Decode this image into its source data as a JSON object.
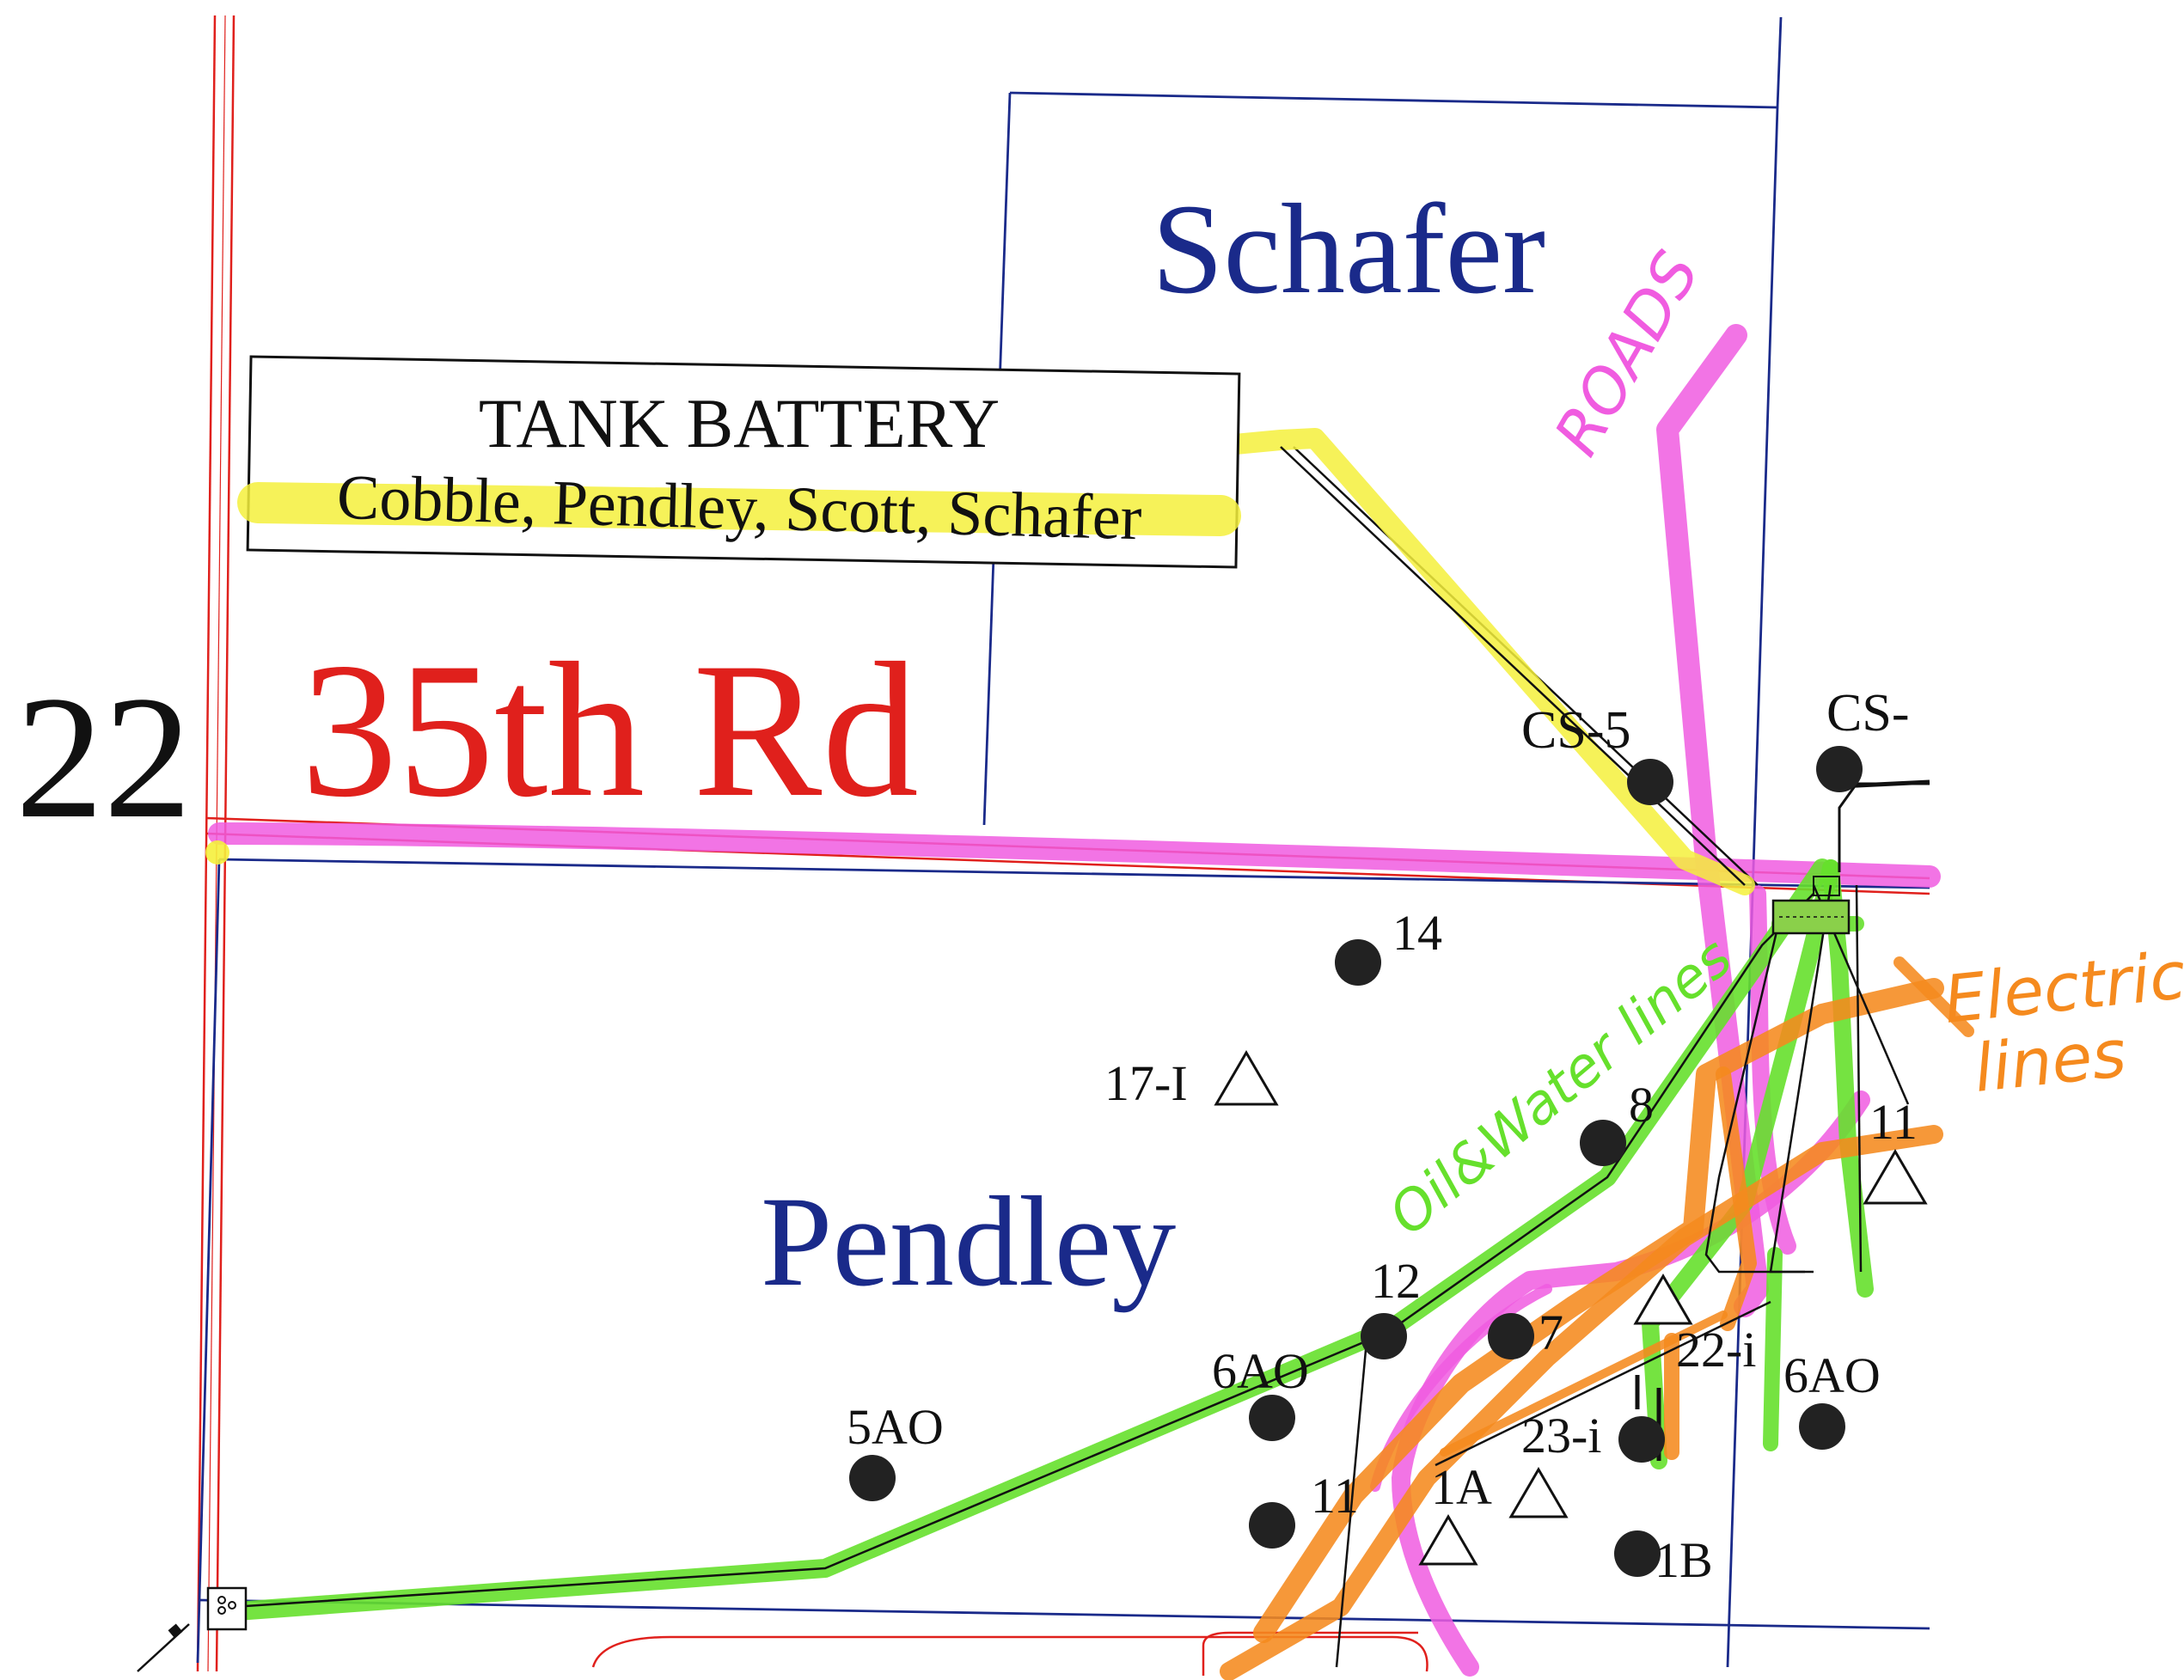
{
  "map": {
    "section_number": "22",
    "road_name": "35th Rd",
    "lease_names": {
      "north": "Schafer",
      "south": "Pendley"
    },
    "tank_battery": {
      "title": "TANK BATTERY",
      "subtitle": "Cobble, Pendley, Scott, Schafer"
    },
    "handwritten_annotations": {
      "roads": "ROADS",
      "oil_water_lines": "Oil&Water lines",
      "electric": "Electric",
      "lines": "lines"
    },
    "wells": [
      {
        "label": "CS-5",
        "symbol": "producing-well"
      },
      {
        "label": "CS-",
        "symbol": "producing-well"
      },
      {
        "label": "14",
        "symbol": "producing-well"
      },
      {
        "label": "17-I",
        "symbol": "injection-well"
      },
      {
        "label": "8",
        "symbol": "producing-well"
      },
      {
        "label": "12",
        "symbol": "producing-well"
      },
      {
        "label": "7",
        "symbol": "producing-well"
      },
      {
        "label": "6AO",
        "symbol": "producing-well"
      },
      {
        "label": "5AO",
        "symbol": "producing-well"
      },
      {
        "label": "11",
        "symbol": "producing-well"
      },
      {
        "label": "1A",
        "symbol": "injection-well"
      },
      {
        "label": "23-i",
        "symbol": "producing-well"
      },
      {
        "label": "22-i",
        "symbol": "injection-well"
      },
      {
        "label": "6AO",
        "symbol": "producing-well"
      },
      {
        "label": "1B",
        "symbol": "producing-well"
      },
      {
        "label": "11",
        "symbol": "injection-well"
      }
    ],
    "colors": {
      "road_lines": "#e0201c",
      "lease_boundaries": "#1a2a8a",
      "roads_highlight": "#f05ce0",
      "oil_water_highlight": "#66e02c",
      "electric_highlight": "#f58a1e",
      "tank_battery_highlight": "#f5f03c",
      "well_fill": "#222222"
    }
  }
}
